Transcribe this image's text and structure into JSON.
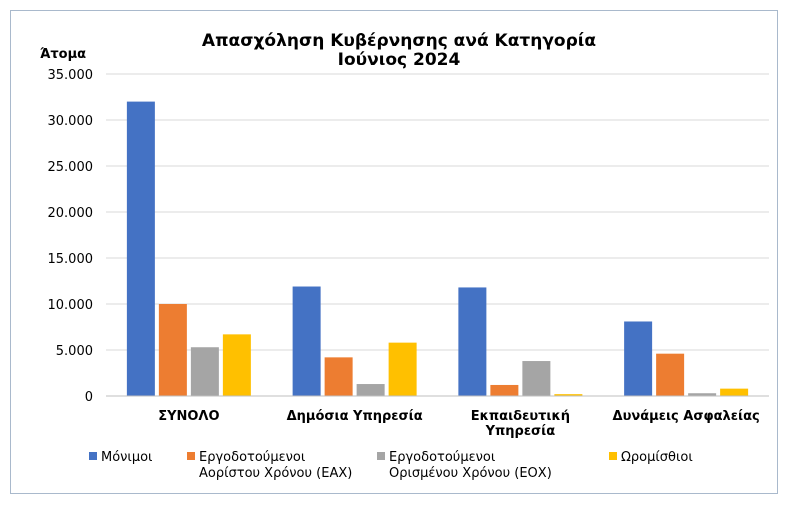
{
  "chart_data": {
    "type": "bar",
    "title": [
      "Απασχόληση Κυβέρνησης ανά Κατηγορία",
      "Ιούνιος 2024"
    ],
    "ylabel": "Άτομα",
    "xlabel": "",
    "ylim": [
      0,
      35000
    ],
    "yticks": [
      0,
      5000,
      10000,
      15000,
      20000,
      25000,
      30000,
      35000
    ],
    "ytick_labels": [
      "0",
      "5.000",
      "10.000",
      "15.000",
      "20.000",
      "25.000",
      "30.000",
      "35.000"
    ],
    "grid": true,
    "legend_position": "bottom",
    "categories": [
      [
        "ΣΥΝΟΛΟ"
      ],
      [
        "Δημόσια Υπηρεσία"
      ],
      [
        "Εκπαιδευτική",
        "Υπηρεσία"
      ],
      [
        "Δυνάμεις Ασφαλείας"
      ]
    ],
    "series": [
      {
        "name": [
          "Μόνιμοι"
        ],
        "color": "#4472c4",
        "values": [
          32000,
          11900,
          11800,
          8100
        ]
      },
      {
        "name": [
          "Εργοδοτούμενοι",
          "Αορίστου Χρόνου (ΕΑΧ)"
        ],
        "color": "#ed7d31",
        "values": [
          10000,
          4200,
          1200,
          4600
        ]
      },
      {
        "name": [
          "Εργοδοτούμενοι",
          "Ορισμένου Χρόνου (ΕΟΧ)"
        ],
        "color": "#a5a5a5",
        "values": [
          5300,
          1300,
          3800,
          300
        ]
      },
      {
        "name": [
          "Ωρομίσθιοι"
        ],
        "color": "#ffc000",
        "values": [
          6700,
          5800,
          200,
          800
        ]
      }
    ]
  }
}
